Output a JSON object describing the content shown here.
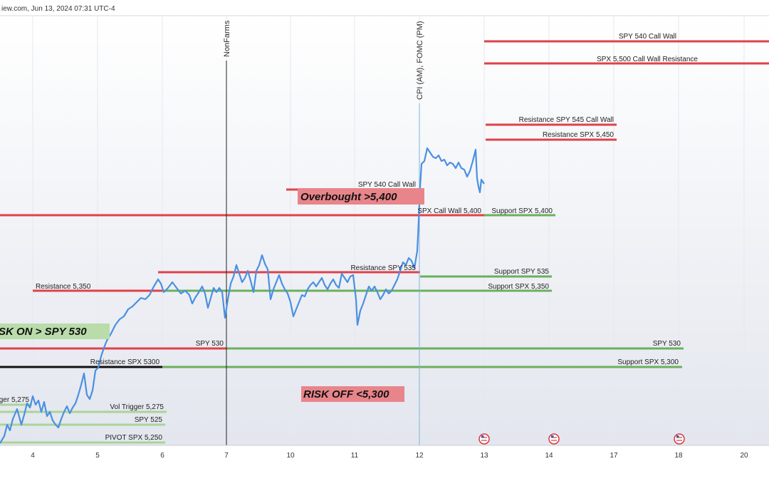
{
  "header": {
    "text": "iew.com, Jun 13, 2024 07:31 UTC-4"
  },
  "colors": {
    "resistance": "#e0414a",
    "support": "#6bb05c",
    "price": "#4a90e2",
    "black": "#111111",
    "fib": "#a8d49a"
  },
  "chart_data": {
    "type": "line",
    "x_ticks": [
      "4",
      "5",
      "6",
      "7",
      "10",
      "11",
      "12",
      "13",
      "14",
      "17",
      "18",
      "20"
    ],
    "events": [
      {
        "day": "7",
        "label": "NonFarms"
      },
      {
        "day": "12",
        "label": "CPI (AM), FOMC (PM)"
      }
    ],
    "boxes": [
      {
        "text": "Overbought >5,400",
        "color": "#e8858a"
      },
      {
        "text": "SK ON > SPY 530",
        "color": "#b9dcaa"
      },
      {
        "text": "RISK OFF <5,300",
        "color": "#e8858a"
      }
    ],
    "levels": [
      {
        "label": "SPY 540 Call Wall",
        "color": "#e0414a"
      },
      {
        "label": "SPX 5,500 Call Wall Resistance",
        "color": "#e0414a"
      },
      {
        "label": "Resistance SPY 545 Call Wall",
        "color": "#e0414a"
      },
      {
        "label": "Resistance SPX  5,450",
        "color": "#e0414a"
      },
      {
        "label": "SPY 540 Call Wall",
        "color": "#e0414a"
      },
      {
        "label": "SPX Call Wall 5,400",
        "color": "#e0414a"
      },
      {
        "label": "Support SPX 5,400",
        "color": "#6bb05c"
      },
      {
        "label": "Resistance SPY 535",
        "color": "#e0414a"
      },
      {
        "label": "Support SPY 535",
        "color": "#6bb05c"
      },
      {
        "label": "Resistance 5,350",
        "color": "#e0414a"
      },
      {
        "label": "Support SPX 5,350",
        "color": "#6bb05c"
      },
      {
        "label": "SPY 530",
        "color": "#e0414a"
      },
      {
        "label": "SPY 530",
        "color": "#6bb05c"
      },
      {
        "label": "Resistance SPX 5300",
        "color": "#111111"
      },
      {
        "label": "Support SPX 5,300",
        "color": "#6bb05c"
      },
      {
        "label": "rigger 5,275",
        "color": "#a8d49a"
      },
      {
        "label": "Vol Trigger 5,275",
        "color": "#a8d49a"
      },
      {
        "label": "SPY 525",
        "color": "#a8d49a"
      },
      {
        "label": "PIVOT SPX 5,250",
        "color": "#a8d49a"
      }
    ]
  }
}
